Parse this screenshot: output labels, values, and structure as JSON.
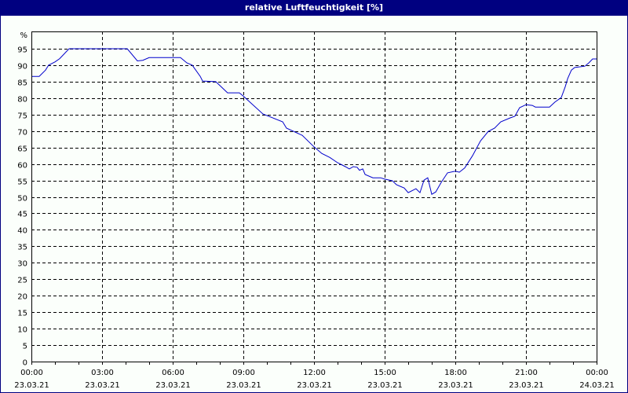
{
  "window": {
    "title": "relative Luftfeuchtigkeit [%]"
  },
  "colors": {
    "titlebar": "#000080",
    "line": "#0000cc",
    "grid": "#000000",
    "background": "#fbfffb"
  },
  "chart_data": {
    "type": "line",
    "title": "relative Luftfeuchtigkeit [%]",
    "xlabel": "",
    "ylabel": "%",
    "ylim": [
      0,
      95
    ],
    "xlim_hours": [
      0,
      24
    ],
    "grid": true,
    "legend": null,
    "y_ticks": [
      0,
      5,
      10,
      15,
      20,
      25,
      30,
      35,
      40,
      45,
      50,
      55,
      60,
      65,
      70,
      75,
      80,
      85,
      90,
      95
    ],
    "y_unit_label": "%",
    "x_ticks": [
      {
        "hour": 0,
        "time": "00:00",
        "date": "23.03.21"
      },
      {
        "hour": 3,
        "time": "03:00",
        "date": "23.03.21"
      },
      {
        "hour": 6,
        "time": "06:00",
        "date": "23.03.21"
      },
      {
        "hour": 9,
        "time": "09:00",
        "date": "23.03.21"
      },
      {
        "hour": 12,
        "time": "12:00",
        "date": "23.03.21"
      },
      {
        "hour": 15,
        "time": "15:00",
        "date": "23.03.21"
      },
      {
        "hour": 18,
        "time": "18:00",
        "date": "23.03.21"
      },
      {
        "hour": 21,
        "time": "21:00",
        "date": "23.03.21"
      },
      {
        "hour": 24,
        "time": "00:00",
        "date": "24.03.21"
      }
    ],
    "series": [
      {
        "name": "relative Luftfeuchtigkeit",
        "x_hours": [
          0.0,
          0.33,
          0.6,
          0.73,
          1.0,
          1.2,
          1.6,
          4.07,
          4.5,
          4.73,
          5.0,
          6.33,
          6.6,
          6.83,
          7.17,
          7.27,
          7.83,
          8.33,
          8.83,
          9.0,
          9.83,
          10.67,
          10.83,
          11.5,
          12.0,
          12.33,
          12.67,
          13.0,
          13.33,
          13.5,
          13.67,
          13.83,
          13.93,
          14.07,
          14.17,
          14.5,
          14.83,
          15.0,
          15.33,
          15.5,
          15.83,
          16.0,
          16.33,
          16.5,
          16.67,
          16.83,
          17.0,
          17.17,
          17.4,
          17.67,
          18.0,
          18.17,
          18.4,
          18.73,
          19.07,
          19.4,
          19.67,
          19.93,
          20.33,
          20.53,
          20.73,
          21.0,
          21.27,
          21.4,
          22.0,
          22.23,
          22.5,
          22.67,
          22.77,
          22.93,
          23.07,
          23.5,
          23.67,
          23.83,
          24.0
        ],
        "values": [
          86.6,
          86.6,
          88.5,
          90.0,
          91.0,
          92.0,
          95.0,
          95.0,
          91.3,
          91.5,
          92.3,
          92.3,
          90.7,
          90.0,
          86.6,
          85.2,
          85.0,
          81.6,
          81.6,
          80.6,
          75.2,
          72.8,
          70.9,
          68.7,
          65.2,
          63.2,
          62.0,
          60.4,
          59.2,
          58.5,
          59.2,
          59.0,
          58.1,
          58.5,
          56.8,
          55.8,
          55.8,
          55.4,
          54.9,
          53.7,
          52.7,
          51.3,
          52.5,
          51.3,
          55.1,
          55.8,
          50.8,
          51.5,
          54.4,
          57.3,
          57.8,
          57.5,
          58.8,
          62.5,
          67.0,
          69.9,
          70.9,
          72.8,
          74.0,
          74.5,
          77.1,
          78.0,
          77.8,
          77.3,
          77.3,
          78.8,
          80.2,
          83.5,
          85.9,
          88.5,
          89.3,
          89.7,
          90.7,
          91.9,
          91.9
        ]
      }
    ]
  }
}
